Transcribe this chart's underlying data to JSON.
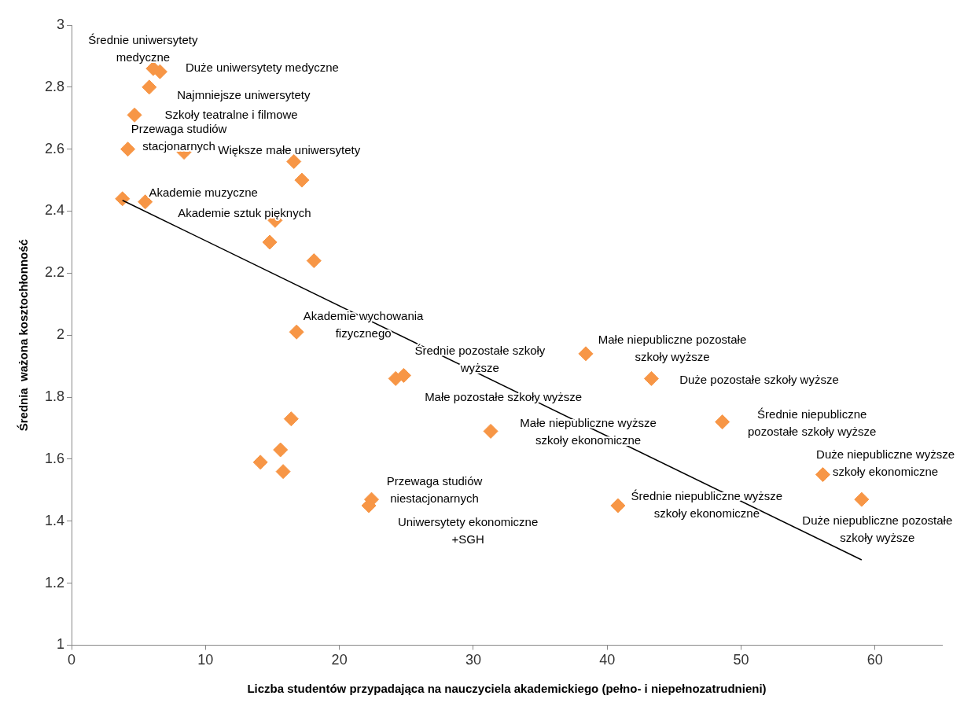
{
  "chart_data": {
    "type": "scatter",
    "xlabel": "Liczba studentów przypadająca na nauczyciela akademickiego (pełno- i niepełnozatrudnieni)",
    "ylabel": "Średnia  ważona kosztochłonność",
    "xlim": [
      0,
      65
    ],
    "xticks": [
      0,
      10,
      20,
      30,
      40,
      50,
      60
    ],
    "ylim": [
      1,
      3
    ],
    "yticks": [
      1,
      1.2,
      1.4,
      1.6,
      1.8,
      2,
      2.2,
      2.4,
      2.6,
      2.8,
      3
    ],
    "grid": false,
    "legend": false,
    "marker": "diamond",
    "series": [
      {
        "color": "#f79646",
        "x": [
          3.8,
          5.5,
          4.2,
          4.7,
          5.8,
          6.1,
          6.6,
          8.4,
          16.6,
          17.2,
          15.2,
          14.8,
          18.1,
          16.8,
          24.2,
          24.8,
          16.4,
          15.6,
          14.1,
          15.8,
          22.4,
          22.2,
          31.3,
          38.4,
          43.3,
          48.6,
          40.8,
          56.1,
          59.0
        ],
        "values": [
          2.44,
          2.43,
          2.6,
          2.71,
          2.8,
          2.86,
          2.85,
          2.59,
          2.56,
          2.5,
          2.37,
          2.3,
          2.24,
          2.01,
          1.86,
          1.87,
          1.73,
          1.63,
          1.59,
          1.56,
          1.47,
          1.45,
          1.69,
          1.94,
          1.86,
          1.72,
          1.45,
          1.55,
          1.47
        ]
      },
      {
        "type": "line",
        "color": "#000000",
        "marker": "none",
        "x": [
          3.8,
          59.0
        ],
        "values": [
          2.435,
          1.275
        ]
      }
    ],
    "annotations": [
      {
        "text": "Średnie uniwersytety medyczne",
        "x": 6.1,
        "y": 2.86
      },
      {
        "text": "Duże uniwersytety medyczne",
        "x": 6.6,
        "y": 2.85
      },
      {
        "text": "Najmniejsze uniwersytety",
        "x": 5.8,
        "y": 2.8
      },
      {
        "text": "Szkoły teatralne i filmowe",
        "x": 4.7,
        "y": 2.71
      },
      {
        "text": "Przewaga studiów stacjonarnych",
        "x": 4.2,
        "y": 2.6
      },
      {
        "text": "Większe małe uniwersytety",
        "x": 16.6,
        "y": 2.56
      },
      {
        "text": "Akademie muzyczne",
        "x": 5.5,
        "y": 2.43
      },
      {
        "text": "Akademie sztuk pięknych",
        "x": 15.2,
        "y": 2.37
      },
      {
        "text": "Akademie wychowania fizycznego",
        "x": 16.8,
        "y": 2.01
      },
      {
        "text": "Średnie pozostałe szkoły wyższe",
        "x": 24.8,
        "y": 1.87
      },
      {
        "text": "Małe pozostałe szkoły wyższe",
        "x": 24.2,
        "y": 1.86
      },
      {
        "text": "Przewaga studiów niestacjonarnych",
        "x": 22.4,
        "y": 1.47
      },
      {
        "text": "Uniwersytety ekonomiczne +SGH",
        "x": 22.2,
        "y": 1.45
      },
      {
        "text": "Małe niepubliczne pozostałe szkoły wyższe",
        "x": 38.4,
        "y": 1.94
      },
      {
        "text": "Duże pozostałe szkoły wyższe",
        "x": 43.3,
        "y": 1.86
      },
      {
        "text": "Małe niepubliczne wyższe szkoły ekonomiczne",
        "x": 31.3,
        "y": 1.69
      },
      {
        "text": "Średnie niepubliczne pozostałe szkoły wyższe",
        "x": 48.6,
        "y": 1.72
      },
      {
        "text": "Duże niepubliczne wyższe szkoły ekonomiczne",
        "x": 56.1,
        "y": 1.55
      },
      {
        "text": "Średnie niepubliczne wyższe szkoły ekonomiczne",
        "x": 40.8,
        "y": 1.45
      },
      {
        "text": "Duże niepubliczne pozostałe szkoły wyższe",
        "x": 59.0,
        "y": 1.47
      }
    ]
  }
}
